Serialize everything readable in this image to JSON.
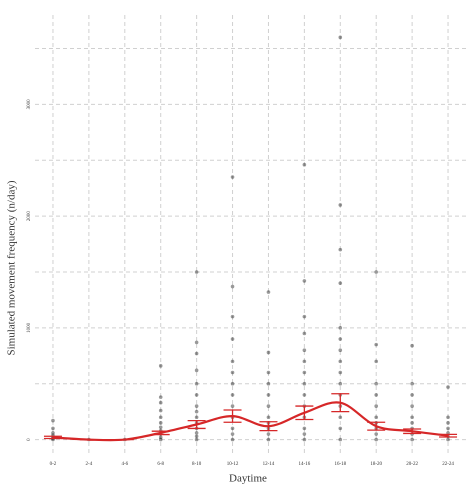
{
  "chart_data": {
    "type": "scatter",
    "x_label": "Daytime",
    "y_label": "Simulated movement frequency (n/day)",
    "categories": [
      "0-2",
      "2-4",
      "4-6",
      "6-8",
      "8-10",
      "10-12",
      "12-14",
      "14-16",
      "16-18",
      "18-20",
      "20-22",
      "22-24"
    ],
    "points": [
      [
        0,
        10,
        20,
        40,
        60,
        100,
        170
      ],
      [
        0
      ],
      [
        0
      ],
      [
        0,
        20,
        50,
        80,
        110,
        150,
        200,
        260,
        330,
        380,
        660
      ],
      [
        0,
        30,
        60,
        100,
        150,
        200,
        250,
        300,
        400,
        500,
        620,
        770,
        870,
        1500
      ],
      [
        0,
        50,
        100,
        200,
        300,
        400,
        500,
        600,
        700,
        900,
        1100,
        1370,
        2350
      ],
      [
        0,
        50,
        100,
        150,
        200,
        300,
        400,
        500,
        600,
        780,
        1320
      ],
      [
        0,
        50,
        100,
        200,
        300,
        400,
        500,
        600,
        700,
        800,
        950,
        1100,
        1420,
        2460
      ],
      [
        0,
        100,
        200,
        300,
        400,
        500,
        600,
        700,
        800,
        900,
        1000,
        1400,
        1700,
        2100,
        3600
      ],
      [
        0,
        50,
        100,
        150,
        200,
        300,
        400,
        500,
        700,
        850,
        1500
      ],
      [
        0,
        50,
        100,
        150,
        200,
        300,
        400,
        500,
        840
      ],
      [
        0,
        30,
        60,
        100,
        150,
        200,
        470
      ]
    ],
    "point_color": "#000000",
    "means": [
      20,
      0,
      0,
      60,
      135,
      210,
      120,
      240,
      330,
      120,
      75,
      35
    ],
    "errors": [
      10,
      0,
      0,
      15,
      35,
      55,
      40,
      60,
      80,
      35,
      20,
      12
    ],
    "line_color": "#d62728",
    "ylim": [
      -120,
      3800
    ],
    "yticks": [
      0,
      1000,
      2000,
      3000
    ],
    "minor_yticks": [
      500,
      1500,
      2500,
      3500
    ],
    "grid": true
  }
}
